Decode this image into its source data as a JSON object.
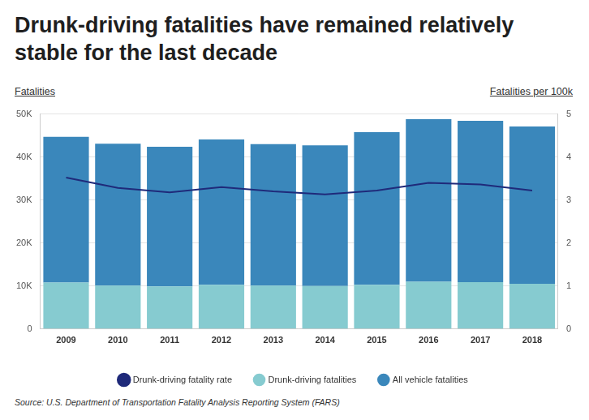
{
  "chart_data": {
    "type": "bar",
    "title": "Drunk-driving fatalities have remained relatively stable for the last decade",
    "ylabel": "Fatalities",
    "y2label": "Fatalities per 100k",
    "source": "Source: U.S. Department of Transportation Fatality Analysis Reporting System (FARS)",
    "categories": [
      "2009",
      "2010",
      "2011",
      "2012",
      "2013",
      "2014",
      "2015",
      "2016",
      "2017",
      "2018"
    ],
    "series": [
      {
        "name": "Drunk-driving fatalities",
        "color": "#86cbd0",
        "values": [
          10800,
          10100,
          9900,
          10300,
          10100,
          10000,
          10300,
          11000,
          10900,
          10500
        ]
      },
      {
        "name": "All vehicle fatalities",
        "color": "#3a87bb",
        "values": [
          33900,
          33000,
          32500,
          33800,
          32900,
          32700,
          35500,
          37800,
          37500,
          36600
        ]
      },
      {
        "name": "Drunk-driving fatality rate",
        "color": "#1f2a7a",
        "type": "line",
        "axis": "y2",
        "values": [
          3.52,
          3.28,
          3.18,
          3.3,
          3.2,
          3.13,
          3.22,
          3.4,
          3.36,
          3.22
        ]
      }
    ],
    "stacked": true,
    "ylim": [
      0,
      50000
    ],
    "yticks": [
      0,
      {
        "value": 10000,
        "label": "10K"
      },
      {
        "value": 20000,
        "label": "20K"
      },
      {
        "value": 30000,
        "label": "30K"
      },
      {
        "value": 40000,
        "label": "40K"
      },
      {
        "value": 50000,
        "label": "50K"
      }
    ],
    "y2lim": [
      0,
      5
    ],
    "y2ticks": [
      0,
      1,
      2,
      3,
      4,
      5
    ],
    "grid": true,
    "legend": "bottom"
  }
}
